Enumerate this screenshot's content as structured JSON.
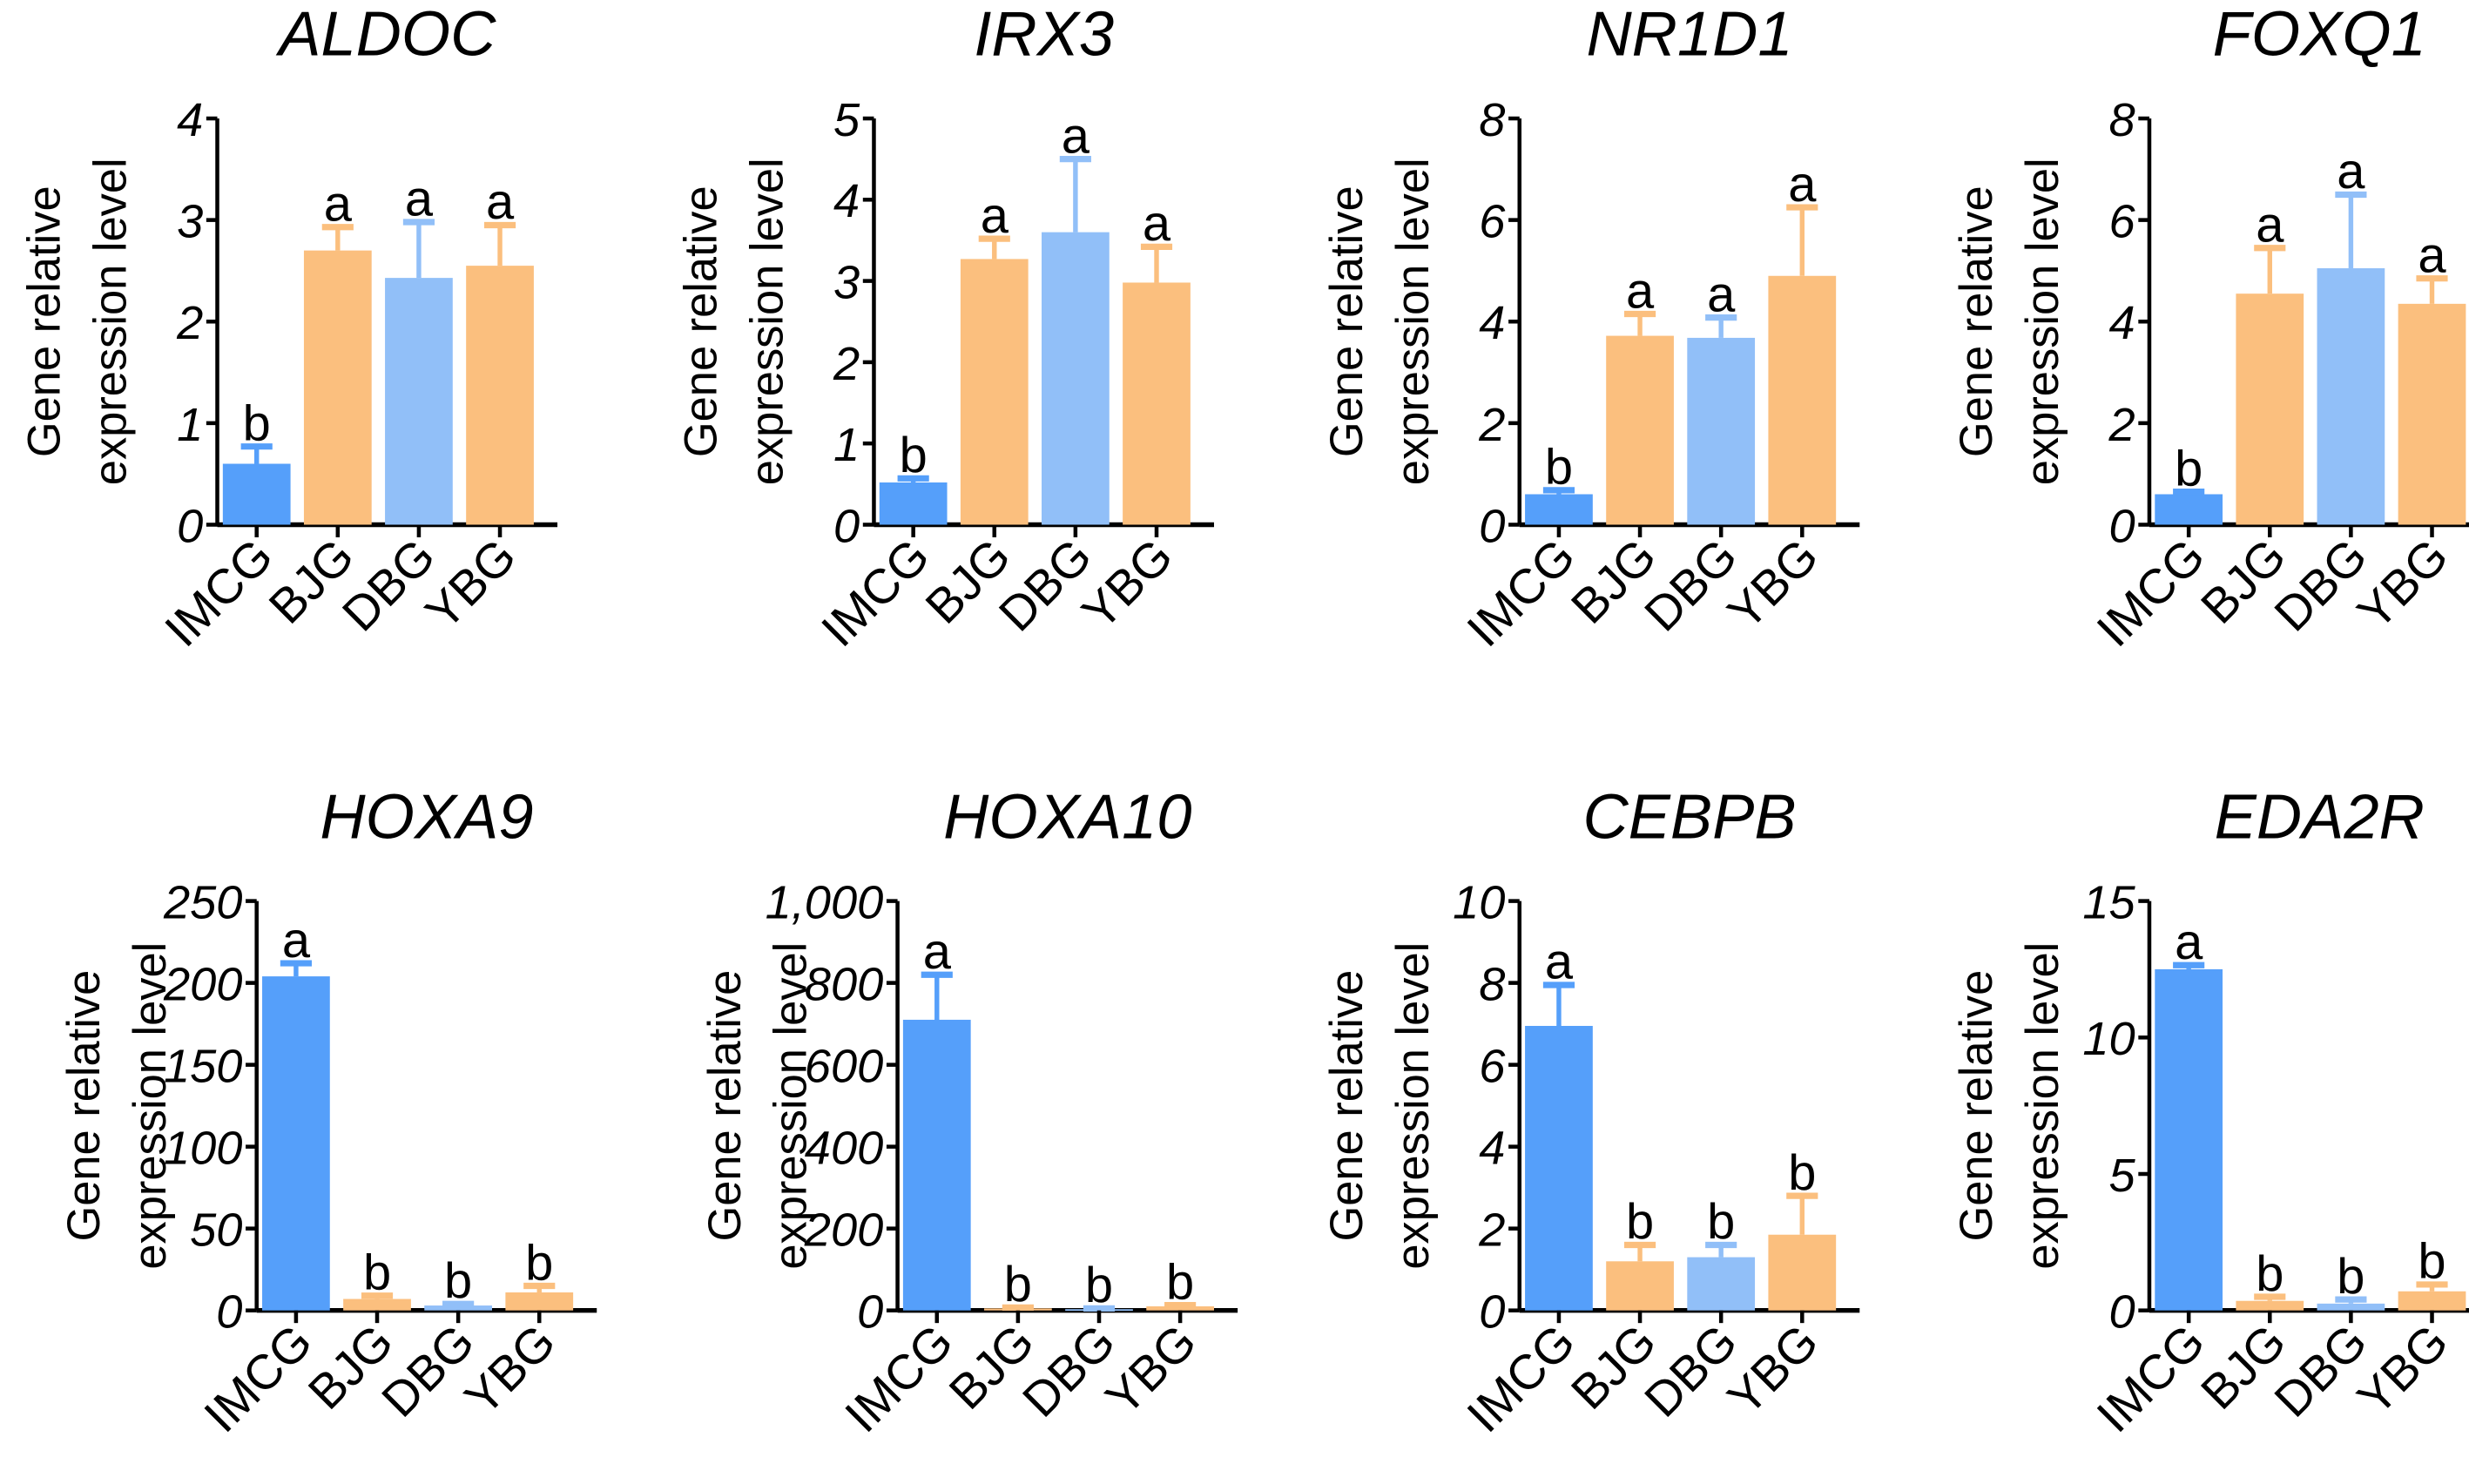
{
  "colors": {
    "IMCG": "#559ffa",
    "BJG": "#fbbf7e",
    "DBG": "#91bff8",
    "YBG": "#fbbf7e"
  },
  "ylabel_line1": "Gene relative",
  "ylabel_line2": "expression level",
  "chart_data": [
    {
      "type": "bar",
      "title": "ALDOC",
      "categories": [
        "IMCG",
        "BJG",
        "DBG",
        "YBG"
      ],
      "values": [
        0.6,
        2.7,
        2.43,
        2.55
      ],
      "error_upper": [
        0.77,
        2.93,
        2.98,
        2.95
      ],
      "letters": [
        "b",
        "a",
        "a",
        "a"
      ],
      "ylim": [
        0,
        4
      ],
      "yticks": [
        0,
        1,
        2,
        3,
        4
      ],
      "ytick_labels": [
        "0",
        "1",
        "2",
        "3",
        "4"
      ],
      "ylabel": "Gene relative expression level"
    },
    {
      "type": "bar",
      "title": "IRX3",
      "categories": [
        "IMCG",
        "BJG",
        "DBG",
        "YBG"
      ],
      "values": [
        0.52,
        3.27,
        3.6,
        2.98
      ],
      "error_upper": [
        0.57,
        3.52,
        4.5,
        3.42
      ],
      "letters": [
        "b",
        "a",
        "a",
        "a"
      ],
      "ylim": [
        0,
        5
      ],
      "yticks": [
        0,
        1,
        2,
        3,
        4,
        5
      ],
      "ytick_labels": [
        "0",
        "1",
        "2",
        "3",
        "4",
        "5"
      ],
      "ylabel": "Gene relative expression level"
    },
    {
      "type": "bar",
      "title": "NR1D1",
      "categories": [
        "IMCG",
        "BJG",
        "DBG",
        "YBG"
      ],
      "values": [
        0.6,
        3.72,
        3.68,
        4.9
      ],
      "error_upper": [
        0.68,
        4.15,
        4.08,
        6.25
      ],
      "letters": [
        "b",
        "a",
        "a",
        "a"
      ],
      "ylim": [
        0,
        8
      ],
      "yticks": [
        0,
        2,
        4,
        6,
        8
      ],
      "ytick_labels": [
        "0",
        "2",
        "4",
        "6",
        "8"
      ],
      "ylabel": "Gene relative expression level"
    },
    {
      "type": "bar",
      "title": "FOXQ1",
      "categories": [
        "IMCG",
        "BJG",
        "DBG",
        "YBG"
      ],
      "values": [
        0.6,
        4.55,
        5.05,
        4.35
      ],
      "error_upper": [
        0.65,
        5.45,
        6.5,
        4.85
      ],
      "letters": [
        "b",
        "a",
        "a",
        "a"
      ],
      "ylim": [
        0,
        8
      ],
      "yticks": [
        0,
        2,
        4,
        6,
        8
      ],
      "ytick_labels": [
        "0",
        "2",
        "4",
        "6",
        "8"
      ],
      "ylabel": "Gene relative expression level"
    },
    {
      "type": "bar",
      "title": "HOXA9",
      "categories": [
        "IMCG",
        "BJG",
        "DBG",
        "YBG"
      ],
      "values": [
        204,
        7,
        3,
        11
      ],
      "error_upper": [
        212,
        9,
        4,
        15
      ],
      "letters": [
        "a",
        "b",
        "b",
        "b"
      ],
      "ylim": [
        0,
        250
      ],
      "yticks": [
        0,
        50,
        100,
        150,
        200,
        250
      ],
      "ytick_labels": [
        "0",
        "50",
        "100",
        "150",
        "200",
        "250"
      ],
      "ylabel": "Gene relative expression level"
    },
    {
      "type": "bar",
      "title": "HOXA10",
      "categories": [
        "IMCG",
        "BJG",
        "DBG",
        "YBG"
      ],
      "values": [
        710,
        5,
        3,
        10
      ],
      "error_upper": [
        820,
        7,
        5,
        13
      ],
      "letters": [
        "a",
        "b",
        "b",
        "b"
      ],
      "ylim": [
        0,
        1000
      ],
      "yticks": [
        0,
        200,
        400,
        600,
        800,
        1000
      ],
      "ytick_labels": [
        "0",
        "200",
        "400",
        "600",
        "800",
        "1,000"
      ],
      "ylabel": "Gene relative expression level"
    },
    {
      "type": "bar",
      "title": "CEBPB",
      "categories": [
        "IMCG",
        "BJG",
        "DBG",
        "YBG"
      ],
      "values": [
        6.95,
        1.2,
        1.3,
        1.85
      ],
      "error_upper": [
        7.95,
        1.6,
        1.6,
        2.8
      ],
      "letters": [
        "a",
        "b",
        "b",
        "b"
      ],
      "ylim": [
        0,
        10
      ],
      "yticks": [
        0,
        2,
        4,
        6,
        8,
        10
      ],
      "ytick_labels": [
        "0",
        "2",
        "4",
        "6",
        "8",
        "10"
      ],
      "ylabel": "Gene relative expression level"
    },
    {
      "type": "bar",
      "title": "EDA2R",
      "categories": [
        "IMCG",
        "BJG",
        "DBG",
        "YBG"
      ],
      "values": [
        12.5,
        0.35,
        0.25,
        0.7
      ],
      "error_upper": [
        12.65,
        0.5,
        0.4,
        0.95
      ],
      "letters": [
        "a",
        "b",
        "b",
        "b"
      ],
      "ylim": [
        0,
        15
      ],
      "yticks": [
        0,
        5,
        10,
        15
      ],
      "ytick_labels": [
        "0",
        "5",
        "10",
        "15"
      ],
      "ylabel": "Gene relative expression level"
    }
  ]
}
